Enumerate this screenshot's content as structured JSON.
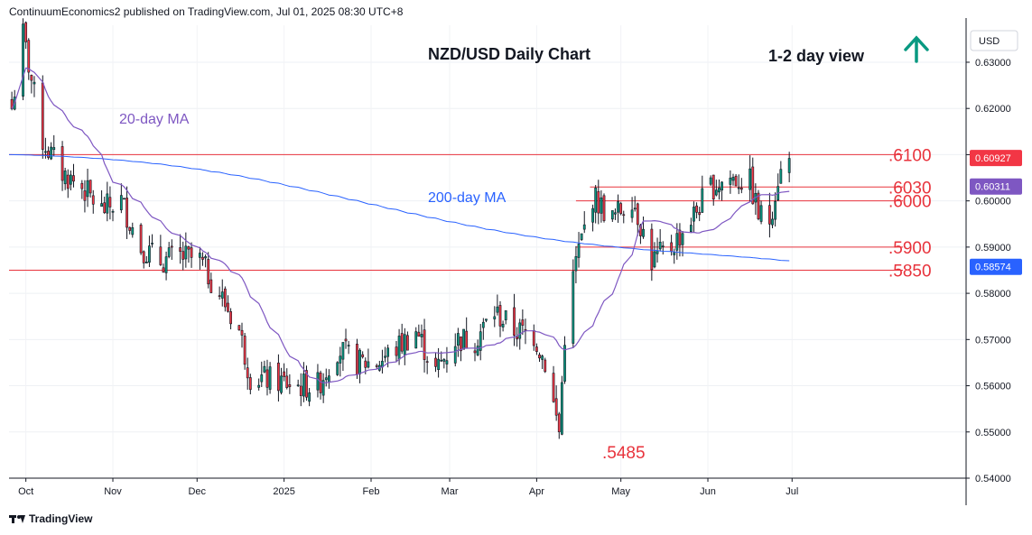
{
  "header": {
    "text": "ContinuumEconomics2 published on TradingView.com, Jul 01, 2025 08:30 UTC+8"
  },
  "footer": {
    "brand": "TradingView"
  },
  "colors": {
    "up": "#089981",
    "down": "#f23645",
    "ma20": "#7e57c2",
    "ma200": "#2962ff",
    "level": "#e8333c",
    "arrow": "#089981"
  },
  "chart_data": {
    "type": "candlestick",
    "title": "NZD/USD Daily Chart",
    "view_label": "1-2 day view",
    "view_icon": "arrow-up-icon",
    "currency": "USD",
    "ylim": [
      0.54,
      0.638
    ],
    "y_ticks": [
      "0.63000",
      "0.62000",
      "0.61000",
      "0.60000",
      "0.59000",
      "0.58000",
      "0.57000",
      "0.56000",
      "0.55000",
      "0.54000"
    ],
    "x_ticks": [
      "Oct",
      "Nov",
      "Dec",
      "2025",
      "Feb",
      "Mar",
      "Apr",
      "May",
      "Jun",
      "Jul"
    ],
    "price_tags": [
      {
        "label": "0.60927",
        "value": 0.60927,
        "bg": "#f23645"
      },
      {
        "label": "0.60311",
        "value": 0.60311,
        "bg": "#7e57c2"
      },
      {
        "label": "0.58574",
        "value": 0.58574,
        "bg": "#2962ff"
      }
    ],
    "levels": [
      {
        "label": ".6100",
        "value": 0.61
      },
      {
        "label": ".6030",
        "value": 0.603
      },
      {
        "label": ".6000",
        "value": 0.6
      },
      {
        "label": ".5900",
        "value": 0.59
      },
      {
        "label": ".5850",
        "value": 0.585
      }
    ],
    "low_label": ".5485",
    "low_value": 0.5485,
    "ma_labels": [
      "20-day MA",
      "200-day MA"
    ],
    "anchors": [
      [
        "2024-09-26",
        0.62
      ],
      [
        "2024-09-30",
        0.636
      ],
      [
        "2024-10-07",
        0.613
      ],
      [
        "2024-10-14",
        0.606
      ],
      [
        "2024-10-21",
        0.603
      ],
      [
        "2024-10-28",
        0.598
      ],
      [
        "2024-11-04",
        0.6
      ],
      [
        "2024-11-11",
        0.59
      ],
      [
        "2024-11-18",
        0.587
      ],
      [
        "2024-11-25",
        0.588
      ],
      [
        "2024-12-02",
        0.587
      ],
      [
        "2024-12-09",
        0.58
      ],
      [
        "2024-12-16",
        0.572
      ],
      [
        "2024-12-20",
        0.562
      ],
      [
        "2024-12-30",
        0.561
      ],
      [
        "2025-01-06",
        0.56
      ],
      [
        "2025-01-13",
        0.56
      ],
      [
        "2025-01-20",
        0.568
      ],
      [
        "2025-01-27",
        0.565
      ],
      [
        "2025-02-03",
        0.565
      ],
      [
        "2025-02-10",
        0.568
      ],
      [
        "2025-02-17",
        0.572
      ],
      [
        "2025-02-24",
        0.563
      ],
      [
        "2025-03-03",
        0.57
      ],
      [
        "2025-03-10",
        0.57
      ],
      [
        "2025-03-17",
        0.576
      ],
      [
        "2025-03-24",
        0.572
      ],
      [
        "2025-03-31",
        0.571
      ],
      [
        "2025-04-04",
        0.565
      ],
      [
        "2025-04-09",
        0.55
      ],
      [
        "2025-04-11",
        0.571
      ],
      [
        "2025-04-15",
        0.587
      ],
      [
        "2025-04-21",
        0.601
      ],
      [
        "2025-04-28",
        0.596
      ],
      [
        "2025-05-05",
        0.601
      ],
      [
        "2025-05-12",
        0.587
      ],
      [
        "2025-05-19",
        0.59
      ],
      [
        "2025-05-26",
        0.596
      ],
      [
        "2025-06-02",
        0.603
      ],
      [
        "2025-06-09",
        0.605
      ],
      [
        "2025-06-16",
        0.604
      ],
      [
        "2025-06-19",
        0.597
      ],
      [
        "2025-06-23",
        0.596
      ],
      [
        "2025-06-26",
        0.605
      ],
      [
        "2025-06-30",
        0.6092
      ]
    ]
  }
}
